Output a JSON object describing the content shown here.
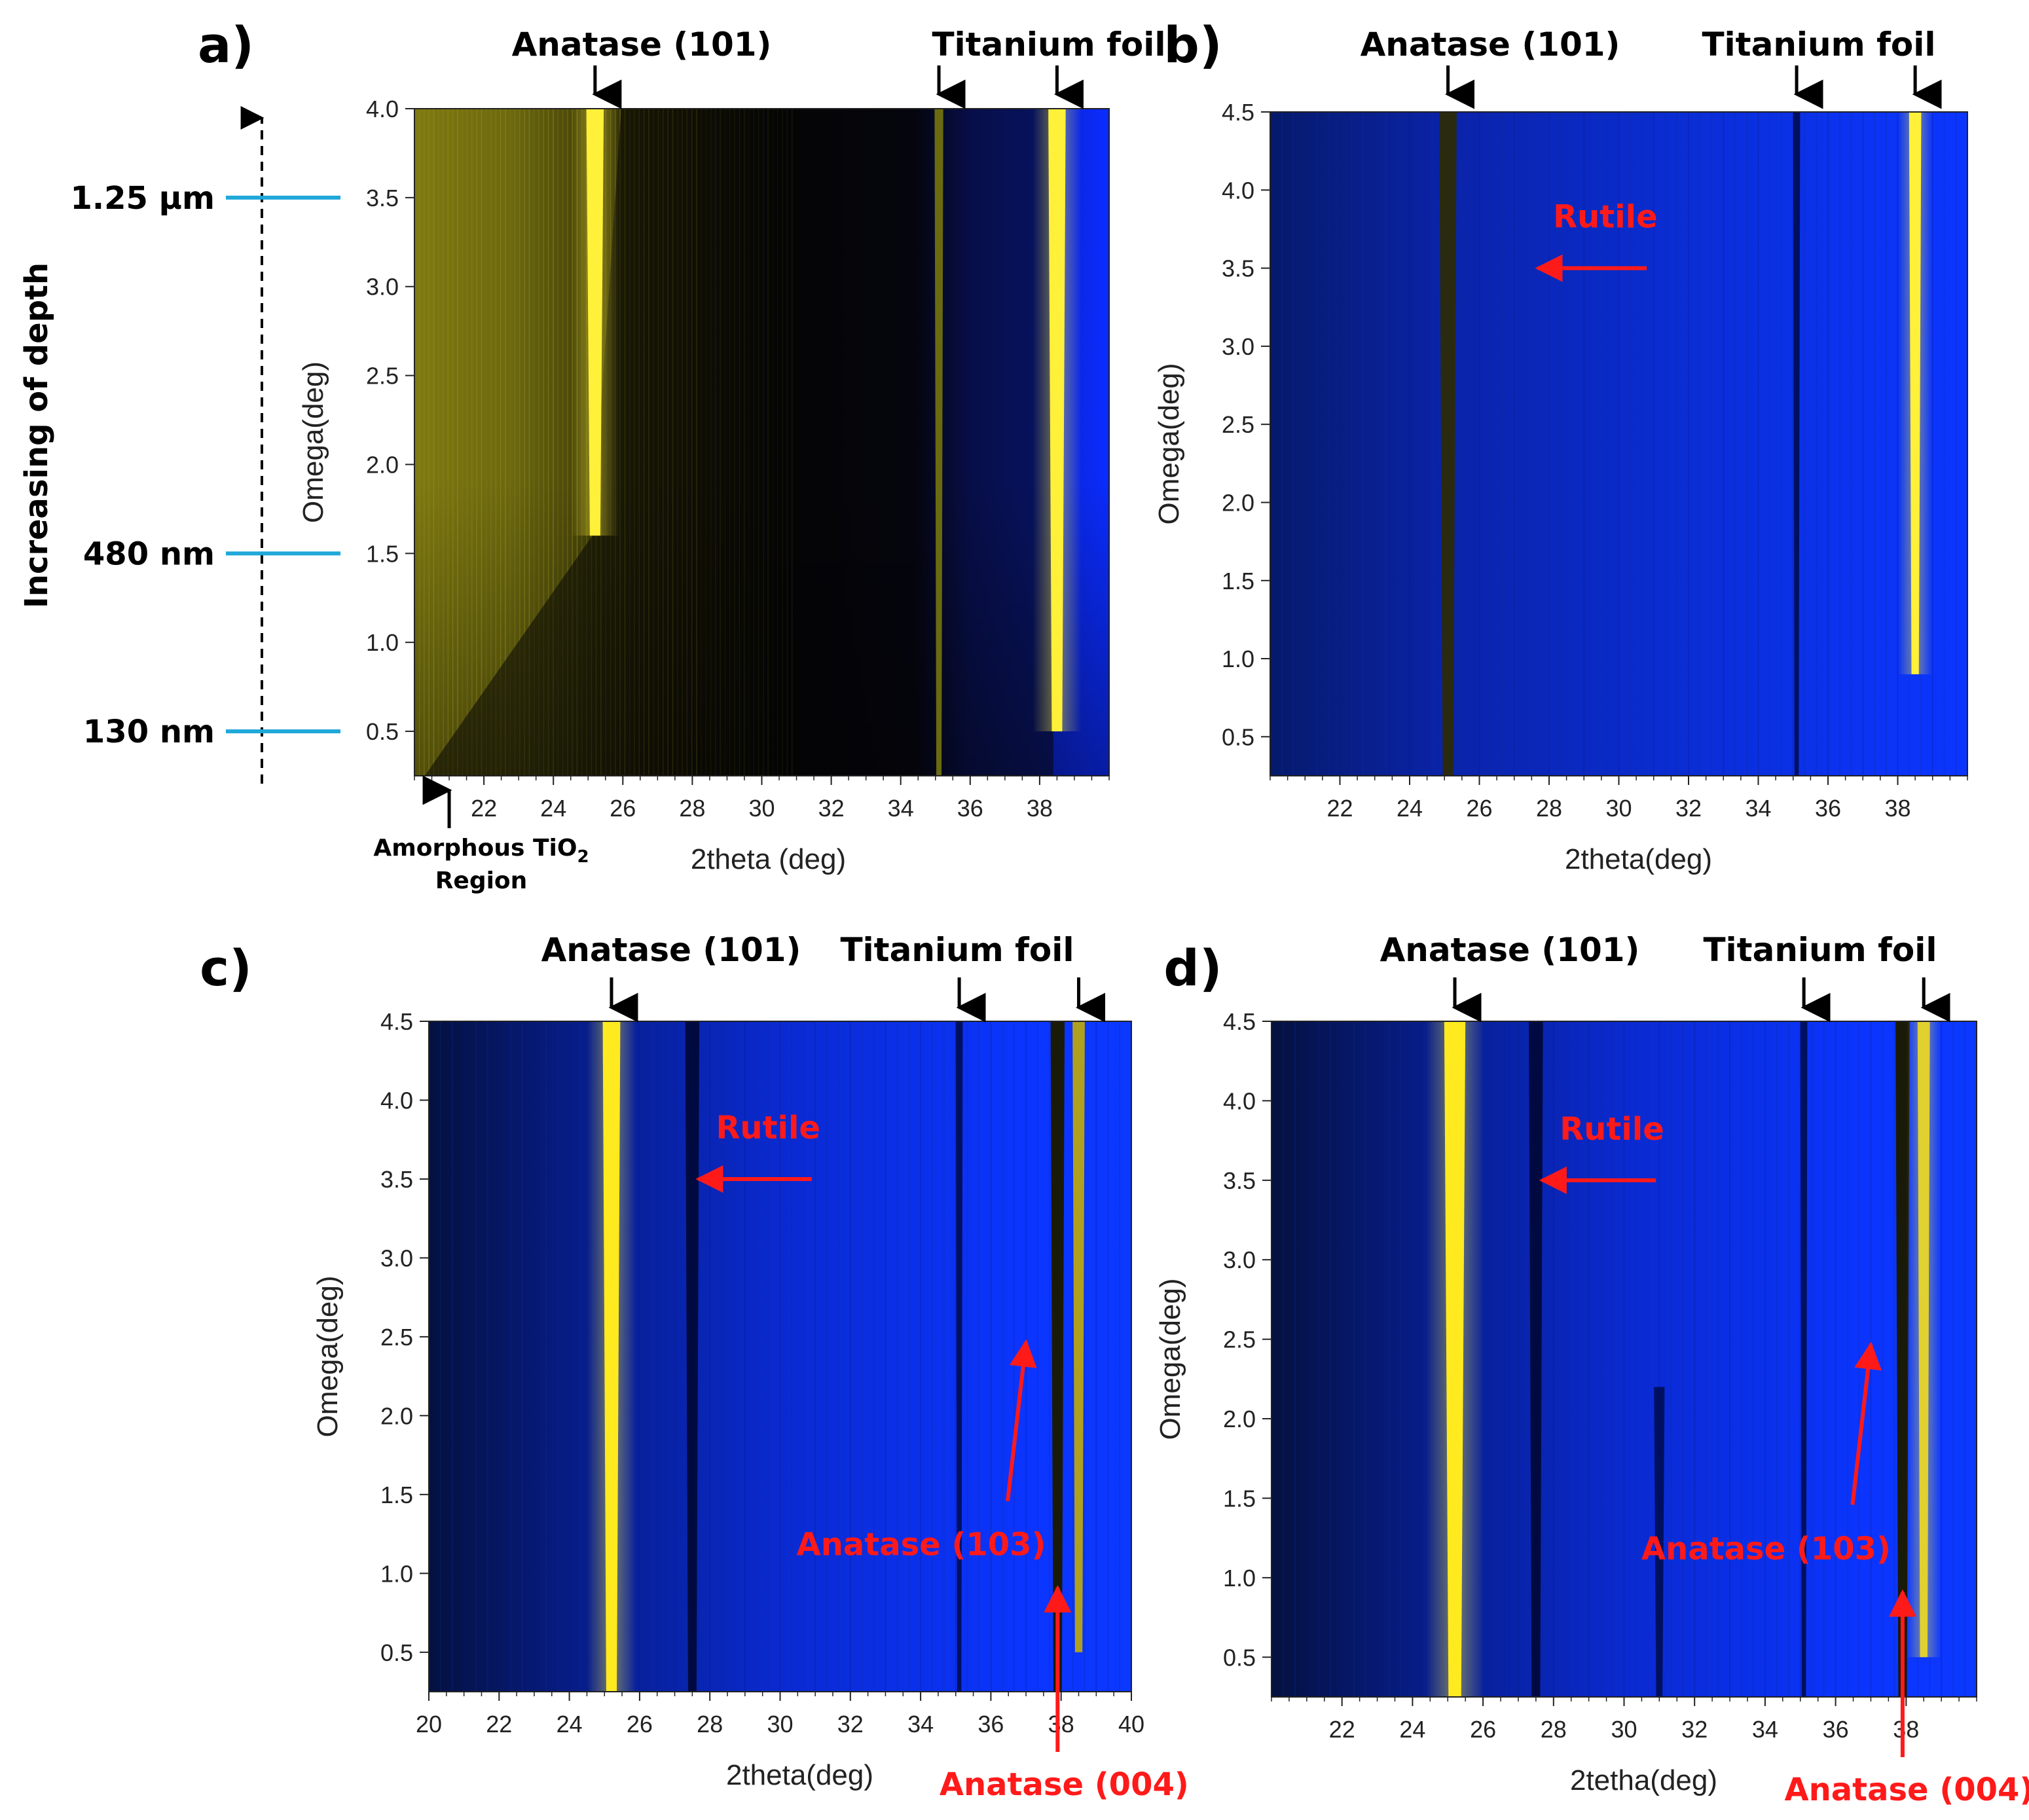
{
  "chart_data": [
    {
      "panel": "a)",
      "type": "heatmap",
      "xlabel": "2theta (deg)",
      "ylabel": "Omega(deg)",
      "xlim": [
        20,
        40
      ],
      "ylim": [
        0.25,
        4.0
      ],
      "xticks": [
        "22",
        "24",
        "26",
        "28",
        "30",
        "32",
        "34",
        "36",
        "38"
      ],
      "yticks": [
        "0.5",
        "1.0",
        "1.5",
        "2.0",
        "2.5",
        "3.0",
        "3.5",
        "4.0"
      ],
      "colormap": "black-yellow-blue",
      "peak_labels": [
        {
          "text": "Anatase (101)",
          "x": [
            25.2
          ]
        },
        {
          "text": "Titanium foil",
          "x": [
            35.1,
            38.5
          ]
        }
      ],
      "bands": [
        {
          "x": 25.2,
          "width": 0.5,
          "color": "#fff03a",
          "omega_from": 1.6,
          "omega_to": 4.0
        },
        {
          "x": 35.1,
          "width": 0.25,
          "color": "#6a6a10",
          "omega_from": 0.25,
          "omega_to": 4.0
        },
        {
          "x": 38.5,
          "width": 0.5,
          "color": "#fff03a",
          "omega_from": 0.5,
          "omega_to": 4.0
        }
      ],
      "annotation": {
        "line1": "Amorphous TiO",
        "subscript": "2",
        "line2": "Region",
        "x": 21.0
      },
      "depth_axis": {
        "title": "Increasing of depth",
        "markers": [
          {
            "label": "1.25 µm",
            "omega": 3.5
          },
          {
            "label": "480 nm",
            "omega": 1.5
          },
          {
            "label": "130 nm",
            "omega": 0.5
          }
        ]
      }
    },
    {
      "panel": "b)",
      "type": "heatmap",
      "xlabel": "2theta(deg)",
      "ylabel": "Omega(deg)",
      "xlim": [
        20,
        40
      ],
      "ylim": [
        0.25,
        4.5
      ],
      "xticks": [
        "22",
        "24",
        "26",
        "28",
        "30",
        "32",
        "34",
        "36",
        "38"
      ],
      "yticks": [
        "0.5",
        "1.0",
        "1.5",
        "2.0",
        "2.5",
        "3.0",
        "3.5",
        "4.0",
        "4.5"
      ],
      "colormap": "blue-black-yellow",
      "peak_labels": [
        {
          "text": "Anatase (101)",
          "x": [
            25.1
          ]
        },
        {
          "text": "Titanium foil",
          "x": [
            35.1,
            38.5
          ]
        }
      ],
      "bands": [
        {
          "x": 25.1,
          "width": 0.5,
          "color": "#2a2a10",
          "omega_from": 0.25,
          "omega_to": 4.5
        },
        {
          "x": 35.1,
          "width": 0.2,
          "color": "#001060",
          "omega_from": 0.25,
          "omega_to": 4.5
        },
        {
          "x": 38.5,
          "width": 0.35,
          "color": "#fff03a",
          "omega_from": 0.9,
          "omega_to": 4.5
        }
      ],
      "rutile": {
        "text": "Rutile",
        "arrow_from": 30.8,
        "arrow_to": 27.3,
        "omega": 3.5
      }
    },
    {
      "panel": "c)",
      "type": "heatmap",
      "xlabel": "2theta(deg)",
      "ylabel": "Omega(deg)",
      "xlim": [
        20,
        40
      ],
      "ylim": [
        0.25,
        4.5
      ],
      "xticks": [
        "20",
        "22",
        "24",
        "26",
        "28",
        "30",
        "32",
        "34",
        "36",
        "38",
        "40"
      ],
      "yticks": [
        "0.5",
        "1.0",
        "1.5",
        "2.0",
        "2.5",
        "3.0",
        "3.5",
        "4.0",
        "4.5"
      ],
      "colormap": "blue-black-yellow",
      "peak_labels": [
        {
          "text": "Anatase (101)",
          "x": [
            25.2
          ]
        },
        {
          "text": "Titanium foil",
          "x": [
            35.1,
            38.5
          ]
        }
      ],
      "bands": [
        {
          "x": 25.2,
          "width": 0.5,
          "color": "#ffea20",
          "omega_from": 0.25,
          "omega_to": 4.5
        },
        {
          "x": 27.5,
          "width": 0.4,
          "color": "#000a40",
          "omega_from": 0.25,
          "omega_to": 4.5
        },
        {
          "x": 35.1,
          "width": 0.2,
          "color": "#001060",
          "omega_from": 0.25,
          "omega_to": 4.5
        },
        {
          "x": 37.9,
          "width": 0.4,
          "color": "#1a1a08",
          "omega_from": 0.25,
          "omega_to": 4.5
        },
        {
          "x": 38.5,
          "width": 0.35,
          "color": "#b0a020",
          "omega_from": 0.5,
          "omega_to": 4.5
        }
      ],
      "rutile": {
        "text": "Rutile",
        "arrow_from": 30.9,
        "arrow_to": 27.3,
        "omega": 3.5
      },
      "red_annotations": [
        {
          "text": "Anatase (103)",
          "arrow_to_x": 37.0,
          "arrow_to_omega": 2.55
        },
        {
          "text": "Anatase (004)",
          "arrow_to_x": 37.9,
          "arrow_to_omega": 1.0
        }
      ]
    },
    {
      "panel": "d)",
      "type": "heatmap",
      "xlabel": "2tetha(deg)",
      "ylabel": "Omega(deg)",
      "xlim": [
        20,
        40
      ],
      "ylim": [
        0.25,
        4.5
      ],
      "xticks": [
        "22",
        "24",
        "26",
        "28",
        "30",
        "32",
        "34",
        "36",
        "38"
      ],
      "yticks": [
        "0.5",
        "1.0",
        "1.5",
        "2.0",
        "2.5",
        "3.0",
        "3.5",
        "4.0",
        "4.5"
      ],
      "colormap": "blue-black-yellow",
      "peak_labels": [
        {
          "text": "Anatase (101)",
          "x": [
            25.2
          ]
        },
        {
          "text": "Titanium foil",
          "x": [
            35.1,
            38.5
          ]
        }
      ],
      "bands": [
        {
          "x": 25.2,
          "width": 0.6,
          "color": "#ffea20",
          "omega_from": 0.25,
          "omega_to": 4.5
        },
        {
          "x": 27.5,
          "width": 0.4,
          "color": "#000a40",
          "omega_from": 0.25,
          "omega_to": 4.5
        },
        {
          "x": 31.0,
          "width": 0.3,
          "color": "#001060",
          "omega_from": 0.25,
          "omega_to": 2.2
        },
        {
          "x": 35.1,
          "width": 0.2,
          "color": "#001060",
          "omega_from": 0.25,
          "omega_to": 4.5
        },
        {
          "x": 37.9,
          "width": 0.4,
          "color": "#1a1a08",
          "omega_from": 0.25,
          "omega_to": 4.5
        },
        {
          "x": 38.5,
          "width": 0.35,
          "color": "#e0d030",
          "omega_from": 0.5,
          "omega_to": 4.5
        }
      ],
      "rutile": {
        "text": "Rutile",
        "arrow_from": 30.9,
        "arrow_to": 27.3,
        "omega": 3.5
      },
      "red_annotations": [
        {
          "text": "Anatase (103)",
          "arrow_to_x": 37.0,
          "arrow_to_omega": 2.55
        },
        {
          "text": "Anatase (004)",
          "arrow_to_x": 37.9,
          "arrow_to_omega": 1.0
        }
      ]
    }
  ],
  "colors": {
    "yellow": "#fff03a",
    "blue": "#0a2cff",
    "annotation_red": "#ff1a1a",
    "depth_line": "#1fa8d8"
  }
}
